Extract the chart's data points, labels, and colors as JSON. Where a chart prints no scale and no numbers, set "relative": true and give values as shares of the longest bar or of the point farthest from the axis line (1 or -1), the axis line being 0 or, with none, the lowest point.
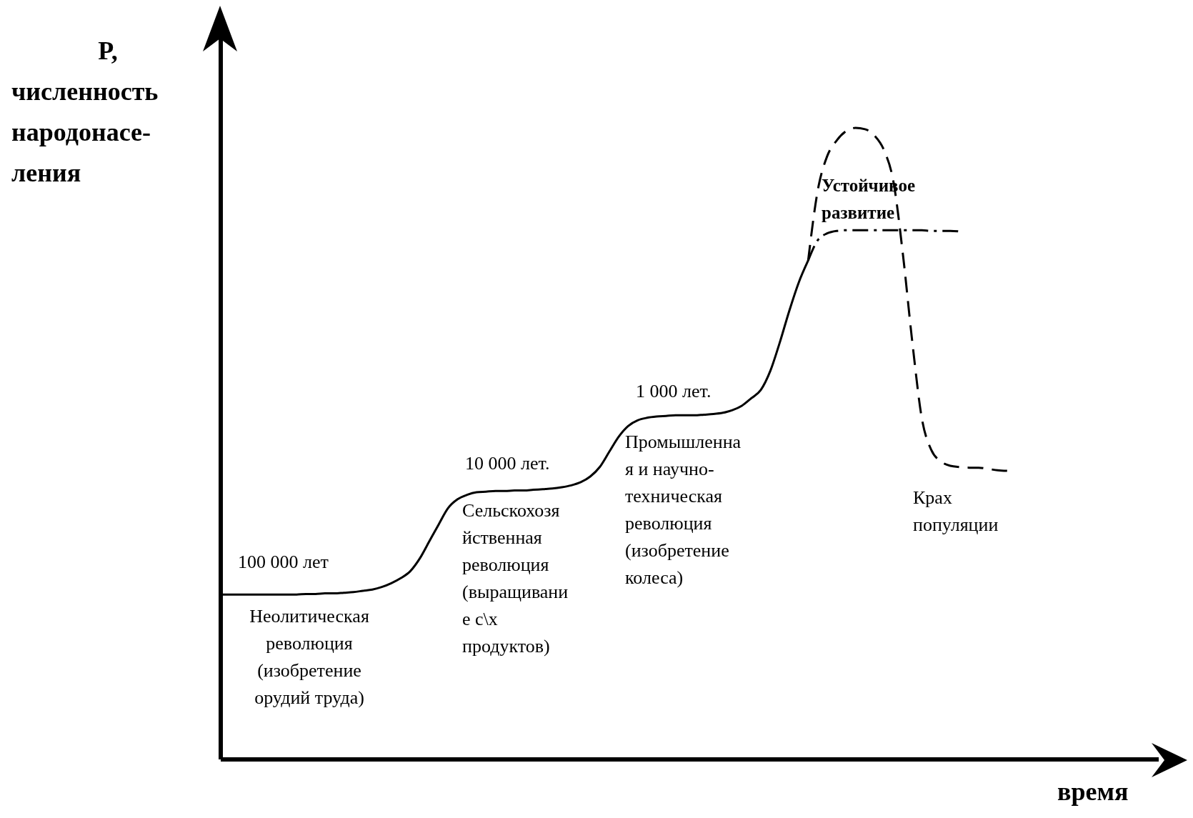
{
  "chart_data": {
    "type": "line",
    "relative": true,
    "ylabel": "P,\nчисленность\nнародонасе-\nления",
    "xlabel": "время",
    "categories": [
      null,
      null,
      null,
      null,
      null,
      null,
      null,
      null,
      null,
      null,
      null,
      null,
      null,
      null,
      null,
      null,
      null,
      null,
      null,
      null,
      null,
      null,
      null,
      null,
      null,
      null,
      null,
      null,
      null,
      null,
      null,
      null,
      null,
      null,
      null,
      null,
      null,
      null,
      null,
      null,
      null,
      null,
      null,
      null,
      null,
      null,
      null,
      null,
      null,
      null,
      null,
      null,
      null,
      null,
      null,
      null,
      null,
      null,
      null,
      null,
      null,
      null,
      null,
      null,
      null,
      null,
      null,
      null,
      null,
      null,
      null,
      null,
      null,
      null,
      null,
      null,
      null,
      null,
      null,
      null,
      null,
      null,
      null,
      null,
      null,
      null,
      null,
      null,
      null,
      null,
      null,
      null,
      null,
      null,
      null,
      null,
      null,
      null,
      null,
      null
    ],
    "series": [
      {
        "color": "#000000",
        "line_style": "solid",
        "values": [
          0.261,
          0.261,
          0.261,
          0.261,
          0.261,
          0.261,
          0.261,
          0.261,
          0.261,
          0.262,
          0.262,
          0.263,
          0.263,
          0.264,
          0.265,
          0.267,
          0.269,
          0.273,
          0.279,
          0.287,
          0.298,
          0.318,
          0.345,
          0.372,
          0.398,
          0.412,
          0.419,
          0.423,
          0.424,
          0.425,
          0.425,
          0.426,
          0.426,
          0.427,
          0.428,
          0.429,
          0.431,
          0.434,
          0.439,
          0.448,
          0.463,
          0.487,
          0.511,
          0.528,
          0.537,
          0.541,
          0.543,
          0.544,
          0.545,
          0.545,
          0.545,
          0.546,
          0.547,
          0.549,
          0.553,
          0.56,
          0.572,
          0.585,
          0.615,
          0.66,
          0.71,
          0.755,
          0.79,
          null,
          null,
          null,
          null,
          null,
          null,
          null,
          null,
          null,
          null,
          null,
          null,
          null,
          null,
          null,
          null,
          null,
          null,
          null,
          null,
          null,
          null,
          null,
          null,
          null,
          null,
          null,
          null,
          null,
          null,
          null,
          null,
          null,
          null,
          null,
          null,
          null
        ]
      },
      {
        "color": "#000000",
        "line_style": "dashdot",
        "values": [
          null,
          null,
          null,
          null,
          null,
          null,
          null,
          null,
          null,
          null,
          null,
          null,
          null,
          null,
          null,
          null,
          null,
          null,
          null,
          null,
          null,
          null,
          null,
          null,
          null,
          null,
          null,
          null,
          null,
          null,
          null,
          null,
          null,
          null,
          null,
          null,
          null,
          null,
          null,
          null,
          null,
          null,
          null,
          null,
          null,
          null,
          null,
          null,
          null,
          null,
          null,
          null,
          null,
          null,
          null,
          null,
          null,
          null,
          null,
          null,
          null,
          null,
          0.79,
          0.822,
          0.833,
          0.837,
          0.838,
          0.838,
          0.838,
          0.838,
          0.838,
          0.838,
          0.838,
          0.838,
          0.838,
          0.837,
          0.837,
          0.837,
          0.836,
          null,
          null,
          null,
          null,
          null,
          null,
          null,
          null,
          null,
          null,
          null,
          null,
          null,
          null,
          null,
          null,
          null,
          null,
          null,
          null,
          null
        ]
      },
      {
        "color": "#000000",
        "line_style": "dashed",
        "values": [
          null,
          null,
          null,
          null,
          null,
          null,
          null,
          null,
          null,
          null,
          null,
          null,
          null,
          null,
          null,
          null,
          null,
          null,
          null,
          null,
          null,
          null,
          null,
          null,
          null,
          null,
          null,
          null,
          null,
          null,
          null,
          null,
          null,
          null,
          null,
          null,
          null,
          null,
          null,
          null,
          null,
          null,
          null,
          null,
          null,
          null,
          null,
          null,
          null,
          null,
          null,
          null,
          null,
          null,
          null,
          null,
          null,
          null,
          null,
          null,
          null,
          null,
          0.79,
          0.9,
          0.955,
          0.98,
          0.995,
          1,
          0.998,
          0.988,
          0.965,
          0.915,
          0.8,
          0.66,
          0.54,
          0.49,
          0.472,
          0.465,
          0.463,
          0.462,
          0.462,
          0.46,
          0.458,
          0.457,
          null,
          null,
          null,
          null,
          null,
          null,
          null,
          null,
          null,
          null,
          null,
          null,
          null,
          null,
          null,
          null
        ]
      }
    ],
    "annotations": [
      "100 000 лет",
      "Неолитическая\nреволюция\n(изобретение\nорудий труда)",
      "10 000 лет.",
      "Сельскохозя\nйственная\nреволюция\n(выращивани\nе с\\х\nпродуктов)",
      "1 000 лет.",
      "Промышленна\nя и научно-\nтехническая\nреволюция\n(изобретение\nколеса)",
      "Устойчивое\nразвитие",
      "Крах\nпопуляции"
    ]
  }
}
